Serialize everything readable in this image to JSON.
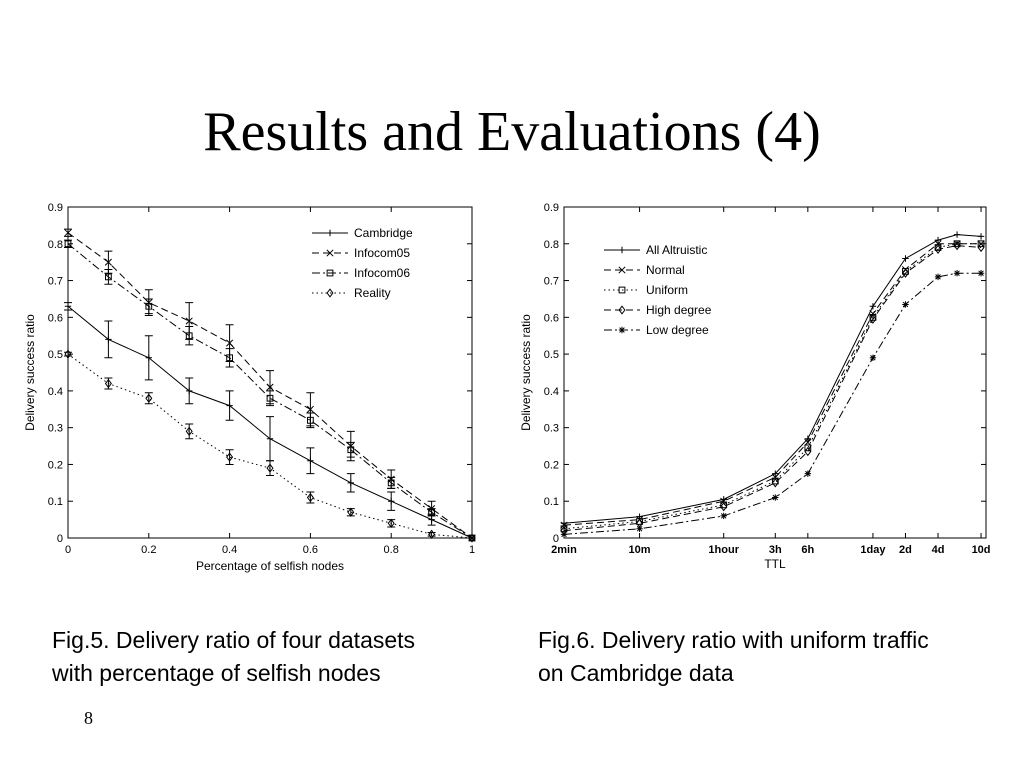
{
  "slide": {
    "title": "Results and Evaluations (4)",
    "page_number": "8"
  },
  "captions": [
    {
      "line1": "Fig.5. Delivery ratio of four datasets",
      "line2": "with percentage of selfish nodes"
    },
    {
      "line1": "Fig.6. Delivery ratio with uniform traffic",
      "line2": "on Cambridge data"
    }
  ],
  "chart_data": [
    {
      "type": "line",
      "xlabel": "Percentage of selfish nodes",
      "ylabel": "Delivery success ratio",
      "xlim": [
        0,
        1
      ],
      "ylim": [
        0,
        0.9
      ],
      "x_ticks": [
        0,
        0.2,
        0.4,
        0.6,
        0.8,
        1
      ],
      "x_tick_labels": [
        "0",
        "0.2",
        "0.4",
        "0.6",
        "0.8",
        "1"
      ],
      "y_ticks": [
        0,
        0.1,
        0.2,
        0.3,
        0.4,
        0.5,
        0.6,
        0.7,
        0.8,
        0.9
      ],
      "y_tick_labels": [
        "0",
        "0.1",
        "0.2",
        "0.3",
        "0.4",
        "0.5",
        "0.6",
        "0.7",
        "0.8",
        "0.9"
      ],
      "legend_position": "top-right",
      "grid": false,
      "x": [
        0,
        0.1,
        0.2,
        0.3,
        0.4,
        0.5,
        0.6,
        0.7,
        0.8,
        0.9,
        1
      ],
      "series": [
        {
          "name": "Cambridge",
          "dash": "solid",
          "marker": "plus",
          "values": [
            0.63,
            0.54,
            0.49,
            0.4,
            0.36,
            0.27,
            0.21,
            0.15,
            0.1,
            0.05,
            0
          ],
          "errors": [
            0.01,
            0.05,
            0.06,
            0.035,
            0.04,
            0.06,
            0.035,
            0.025,
            0.025,
            0.015,
            0
          ]
        },
        {
          "name": "Infocom05",
          "dash": "dashed",
          "marker": "x",
          "values": [
            0.83,
            0.75,
            0.64,
            0.59,
            0.53,
            0.41,
            0.35,
            0.25,
            0.16,
            0.08,
            0
          ],
          "errors": [
            0.01,
            0.03,
            0.035,
            0.05,
            0.05,
            0.045,
            0.045,
            0.04,
            0.025,
            0.02,
            0
          ]
        },
        {
          "name": "Infocom06",
          "dash": "dashdot",
          "marker": "square",
          "values": [
            0.8,
            0.71,
            0.63,
            0.55,
            0.49,
            0.38,
            0.32,
            0.24,
            0.15,
            0.07,
            0
          ],
          "errors": [
            0.01,
            0.02,
            0.02,
            0.025,
            0.025,
            0.02,
            0.02,
            0.02,
            0.015,
            0.01,
            0
          ]
        },
        {
          "name": "Reality",
          "dash": "dotted",
          "marker": "diamond",
          "values": [
            0.5,
            0.42,
            0.38,
            0.29,
            0.22,
            0.19,
            0.11,
            0.07,
            0.04,
            0.01,
            0
          ],
          "errors": [
            0.005,
            0.015,
            0.015,
            0.02,
            0.02,
            0.02,
            0.015,
            0.01,
            0.01,
            0.005,
            0
          ]
        }
      ]
    },
    {
      "type": "line",
      "xlabel": "TTL",
      "ylabel": "Delivery success ratio",
      "ylim": [
        0,
        0.9
      ],
      "x_scale": "log",
      "x_ticks_minutes": [
        2,
        10,
        60,
        180,
        360,
        1440,
        2880,
        5760,
        14400
      ],
      "x_tick_labels": [
        "2min",
        "10m",
        "1hour",
        "3h",
        "6h",
        "1day",
        "2d",
        "4d",
        "10d"
      ],
      "xlim_minutes": [
        2,
        16000
      ],
      "y_ticks": [
        0,
        0.1,
        0.2,
        0.3,
        0.4,
        0.5,
        0.6,
        0.7,
        0.8,
        0.9
      ],
      "y_tick_labels": [
        "0",
        "0.1",
        "0.2",
        "0.3",
        "0.4",
        "0.5",
        "0.6",
        "0.7",
        "0.8",
        "0.9"
      ],
      "legend_position": "top-left",
      "grid": false,
      "x_minutes": [
        2,
        10,
        60,
        180,
        360,
        1440,
        2880,
        5760,
        8640,
        14400
      ],
      "series": [
        {
          "name": "All Altruistic",
          "dash": "solid",
          "marker": "plus",
          "values": [
            0.04,
            0.058,
            0.105,
            0.175,
            0.27,
            0.63,
            0.76,
            0.81,
            0.825,
            0.82
          ]
        },
        {
          "name": "Normal",
          "dash": "dashed",
          "marker": "x",
          "values": [
            0.035,
            0.05,
            0.1,
            0.165,
            0.26,
            0.61,
            0.73,
            0.8,
            0.8,
            0.8
          ]
        },
        {
          "name": "Uniform",
          "dash": "dotted",
          "marker": "square",
          "values": [
            0.025,
            0.045,
            0.09,
            0.155,
            0.245,
            0.6,
            0.725,
            0.79,
            0.8,
            0.8
          ]
        },
        {
          "name": "High degree",
          "dash": "dashed",
          "marker": "diamond",
          "values": [
            0.02,
            0.04,
            0.085,
            0.15,
            0.235,
            0.595,
            0.72,
            0.785,
            0.795,
            0.79
          ]
        },
        {
          "name": "Low degree",
          "dash": "dashdot",
          "marker": "asterisk",
          "values": [
            0.01,
            0.025,
            0.06,
            0.11,
            0.175,
            0.49,
            0.635,
            0.71,
            0.72,
            0.72
          ]
        }
      ]
    }
  ]
}
